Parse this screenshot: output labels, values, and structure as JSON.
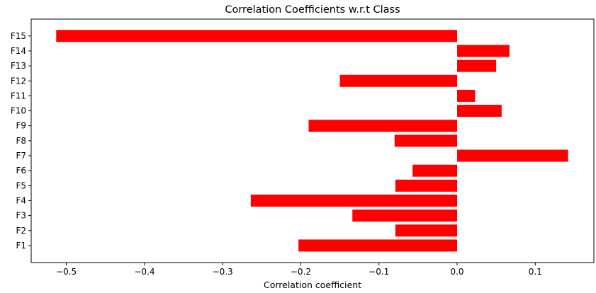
{
  "chart_data": {
    "type": "bar",
    "orientation": "horizontal",
    "title": "Correlation Coefficients w.r.t Class",
    "xlabel": "Correlation coefficient",
    "ylabel": "",
    "categories": [
      "F1",
      "F2",
      "F3",
      "F4",
      "F5",
      "F6",
      "F7",
      "F8",
      "F9",
      "F10",
      "F11",
      "F12",
      "F13",
      "F14",
      "F15"
    ],
    "values": [
      -0.203,
      -0.079,
      -0.134,
      -0.264,
      -0.079,
      -0.057,
      0.142,
      -0.08,
      -0.19,
      0.057,
      0.023,
      -0.15,
      0.05,
      0.067,
      -0.513
    ],
    "bar_color": "#ff0000",
    "xlim": [
      -0.545,
      0.175
    ],
    "xticks": [
      -0.5,
      -0.4,
      -0.3,
      -0.2,
      -0.1,
      0.0,
      0.1
    ],
    "xtick_labels": [
      "−0.5",
      "−0.4",
      "−0.3",
      "−0.2",
      "−0.1",
      "0.0",
      "0.1"
    ],
    "grid": false
  }
}
